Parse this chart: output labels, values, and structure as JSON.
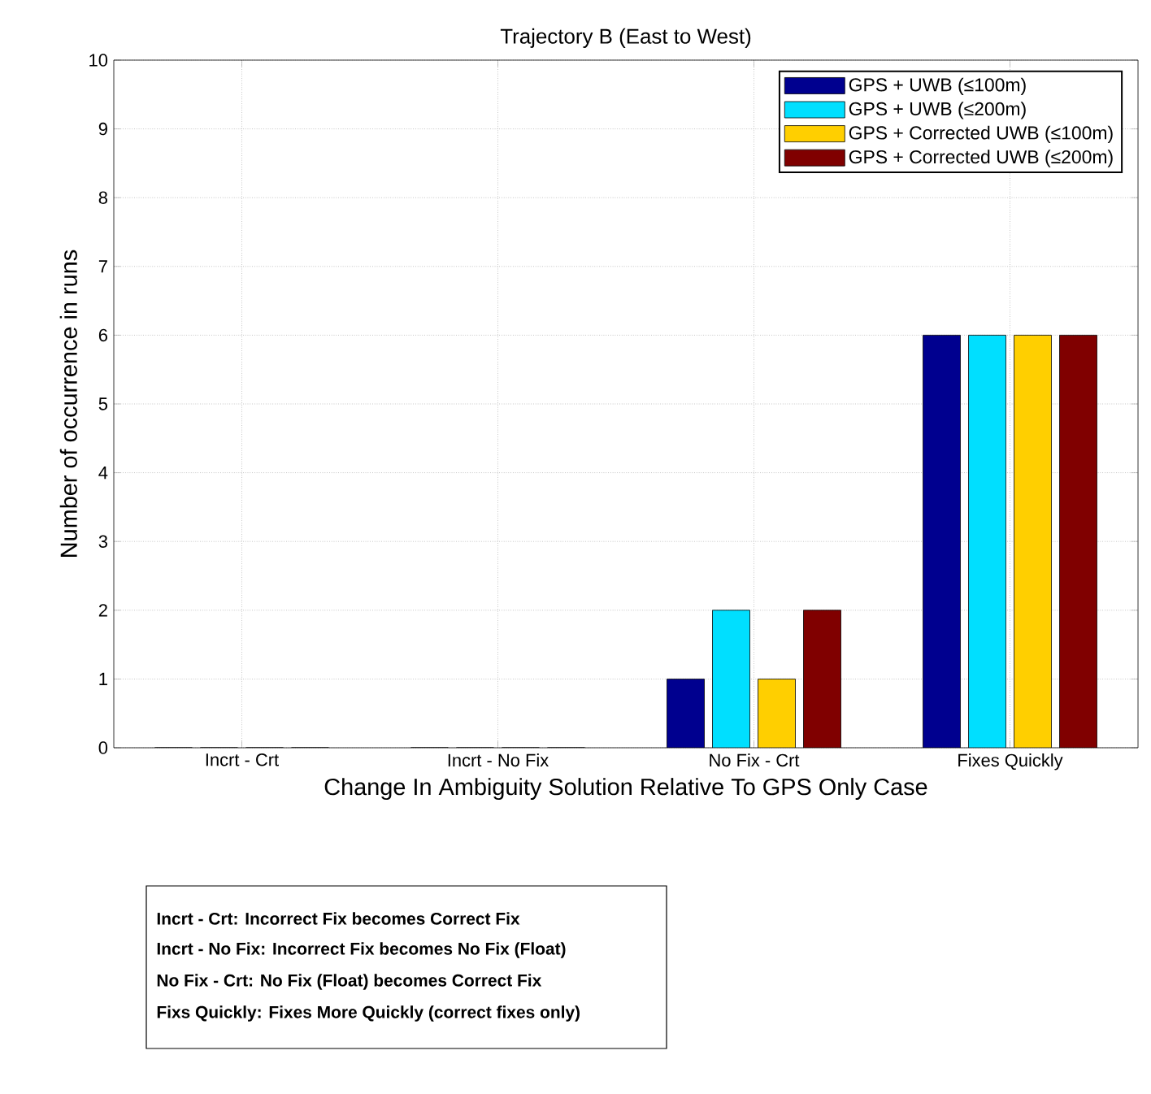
{
  "chart_data": {
    "type": "bar",
    "title": "Trajectory B (East to West)",
    "xlabel": "Change In Ambiguity Solution Relative To GPS Only Case",
    "ylabel": "Number of occurrence in runs",
    "categories": [
      "Incrt - Crt",
      "Incrt - No Fix",
      "No Fix - Crt",
      "Fixes Quickly"
    ],
    "series": [
      {
        "name": "GPS + UWB (≤100m)",
        "color": "#00008f",
        "values": [
          0,
          0,
          1,
          6
        ]
      },
      {
        "name": "GPS + UWB (≤200m)",
        "color": "#00dfff",
        "values": [
          0,
          0,
          2,
          6
        ]
      },
      {
        "name": "GPS + Corrected UWB (≤100m)",
        "color": "#ffcf00",
        "values": [
          0,
          0,
          1,
          6
        ]
      },
      {
        "name": "GPS + Corrected UWB (≤200m)",
        "color": "#800000",
        "values": [
          0,
          0,
          2,
          6
        ]
      }
    ],
    "ylim": [
      0,
      10
    ],
    "yticks": [
      0,
      1,
      2,
      3,
      4,
      5,
      6,
      7,
      8,
      9,
      10
    ],
    "grid": true,
    "legend": "top right",
    "annotations": [
      "Incrt - Crt: Incorrect Fix becomes Correct Fix",
      "Incrt - No Fix: Incorrect Fix becomes No Fix (Float)",
      "No Fix - Crt: No Fix (Float) becomes Correct Fix",
      "Fixs Quickly: Fixes More Quickly (correct fixes only)"
    ]
  }
}
